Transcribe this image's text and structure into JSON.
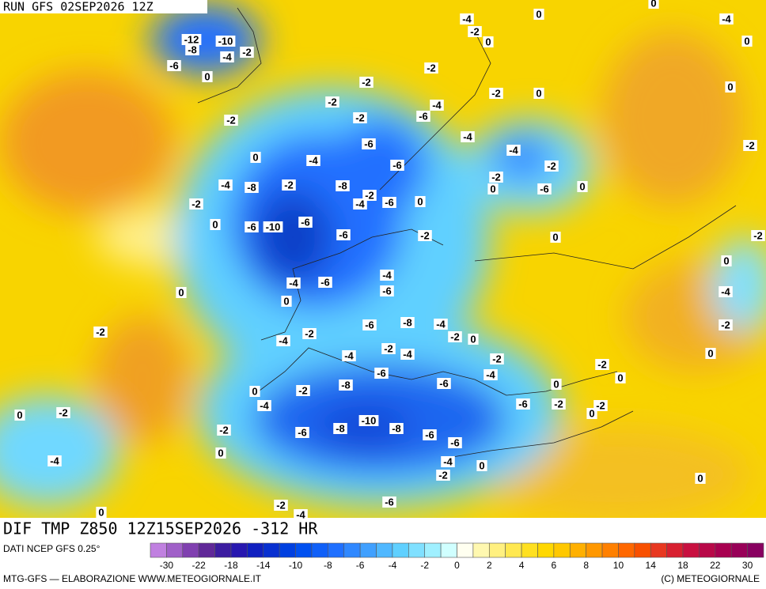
{
  "header": {
    "run": "RUN GFS 02SEP2026 12Z"
  },
  "map": {
    "title": "DIF TMP Z850 12Z15SEP2026 -312 HR",
    "contour_labels": [
      -12,
      -10,
      -8,
      -4,
      -2,
      -6,
      0,
      -4,
      0,
      -2,
      0,
      0,
      -4,
      0,
      -2,
      -2,
      0,
      -2,
      0,
      -2,
      -4,
      -2,
      -2,
      -6,
      -4,
      -6,
      0,
      -4,
      -4,
      -6,
      -2,
      -2,
      -2,
      -4,
      -8,
      -2,
      -8,
      0,
      -6,
      0,
      -2,
      -4,
      -6,
      0,
      -2,
      -6,
      0,
      -6,
      -10,
      -6,
      -2,
      0,
      -2,
      -4,
      0,
      -4,
      -6,
      -6,
      0,
      0,
      -4,
      -2,
      -6,
      -8,
      -4,
      -2,
      -2,
      -2,
      0,
      -4,
      -2,
      -4,
      0,
      -2,
      -4,
      -2,
      -6,
      -4,
      0,
      -8,
      -6,
      0,
      -2,
      0,
      -6,
      -2,
      -2,
      -4,
      0,
      -2,
      0,
      -10,
      -8,
      -8,
      -2,
      -6,
      -6,
      -6,
      0,
      -4,
      -4,
      0,
      -2,
      0,
      -6,
      -2,
      -4,
      0
    ]
  },
  "colorbar": {
    "source": "DATI NCEP GFS 0.25°",
    "colors": [
      "#c080e0",
      "#a060c8",
      "#8040b0",
      "#602898",
      "#3c1ca0",
      "#2818b0",
      "#1020c0",
      "#0830d0",
      "#0040e0",
      "#0050f0",
      "#1060f8",
      "#2070ff",
      "#3088ff",
      "#40a0ff",
      "#50b8ff",
      "#60d0ff",
      "#80e0ff",
      "#a0f0ff",
      "#d0ffff",
      "#fffff0",
      "#fff8b0",
      "#fff080",
      "#ffe850",
      "#ffe020",
      "#ffd800",
      "#ffc800",
      "#ffb000",
      "#ff9800",
      "#ff8000",
      "#ff6800",
      "#f85000",
      "#e83820",
      "#d82030",
      "#c81040",
      "#b80848",
      "#a80050",
      "#980058",
      "#880060"
    ],
    "ticks": [
      -30,
      -22,
      -18,
      -14,
      -10,
      -8,
      -6,
      -4,
      -2,
      0,
      2,
      4,
      6,
      8,
      10,
      14,
      18,
      22,
      30
    ]
  },
  "footer": {
    "left": "MTG-GFS — ELABORAZIONE WWW.METEOGIORNALE.IT",
    "right": "(C) METEOGIORNALE"
  }
}
